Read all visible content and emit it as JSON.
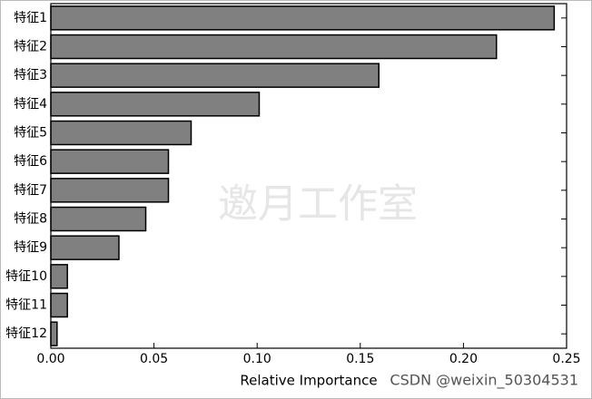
{
  "chart_data": {
    "type": "barh",
    "categories": [
      "特征1",
      "特征2",
      "特征3",
      "特征4",
      "特征5",
      "特征6",
      "特征7",
      "特征8",
      "特征9",
      "特征10",
      "特征11",
      "特征12"
    ],
    "values": [
      0.244,
      0.216,
      0.159,
      0.101,
      0.068,
      0.057,
      0.057,
      0.046,
      0.033,
      0.008,
      0.008,
      0.003
    ],
    "color": "#808080",
    "xlim": [
      0,
      0.25
    ],
    "xticks": [
      {
        "value": 0,
        "label": "0.00"
      },
      {
        "value": 0.05,
        "label": "0.05"
      },
      {
        "value": 0.1,
        "label": "0.10"
      },
      {
        "value": 0.15,
        "label": "0.15"
      },
      {
        "value": 0.2,
        "label": "0.20"
      },
      {
        "value": 0.25,
        "label": "0.25"
      }
    ],
    "x_label": "Relative Importance",
    "watermarks": [
      "邀月工作室",
      "CSDN @weixin_50304531"
    ]
  }
}
